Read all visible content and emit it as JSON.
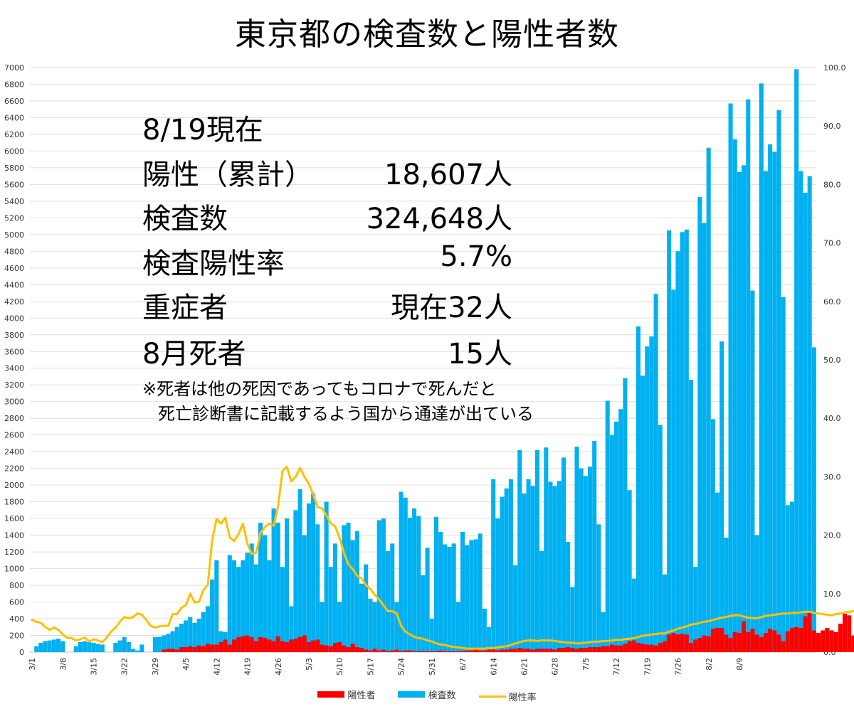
{
  "chart_data": {
    "type": "bar+line",
    "title": "東京都の検査数と陽性者数",
    "x_tick_labels": [
      "3/1",
      "3/8",
      "3/15",
      "3/22",
      "3/29",
      "4/5",
      "4/12",
      "4/19",
      "4/26",
      "5/3",
      "5/10",
      "5/17",
      "5/24",
      "5/31",
      "6/7",
      "6/14",
      "6/21",
      "6/28",
      "7/5",
      "7/12",
      "7/19",
      "7/26",
      "8/2",
      "8/9"
    ],
    "y_left_ticks": [
      "0",
      "200",
      "400",
      "600",
      "800",
      "1000",
      "1200",
      "1400",
      "1600",
      "1800",
      "2000",
      "2200",
      "2400",
      "2600",
      "2800",
      "3000",
      "3200",
      "3400",
      "3600",
      "3800",
      "4000",
      "4200",
      "4400",
      "4600",
      "4800",
      "5000",
      "5200",
      "5400",
      "5600",
      "5800",
      "6000",
      "6200",
      "6400",
      "6600",
      "6800",
      "7000"
    ],
    "y_right_ticks": [
      "0.0",
      "10.0",
      "20.0",
      "30.0",
      "40.0",
      "50.0",
      "60.0",
      "70.0",
      "80.0",
      "90.0",
      "100.0"
    ],
    "ylim_left": [
      0,
      7000
    ],
    "ylim_right": [
      0,
      100
    ],
    "grid": true,
    "legend_position": "bottom",
    "series": [
      {
        "name": "陽性者",
        "axis": "left",
        "type": "bar",
        "color": "#ff0000",
        "values": [
          0,
          0,
          0,
          0,
          0,
          0,
          0,
          0,
          0,
          0,
          0,
          0,
          0,
          0,
          0,
          0,
          0,
          0,
          0,
          0,
          0,
          0,
          0,
          0,
          0,
          0,
          0,
          0,
          0,
          0,
          30,
          40,
          40,
          30,
          60,
          60,
          70,
          60,
          80,
          70,
          100,
          90,
          90,
          120,
          150,
          90,
          150,
          180,
          190,
          200,
          180,
          130,
          180,
          170,
          150,
          130,
          190,
          130,
          120,
          150,
          160,
          180,
          200,
          120,
          140,
          150,
          90,
          80,
          70,
          110,
          120,
          80,
          60,
          100,
          60,
          50,
          30,
          20,
          40,
          20,
          30,
          10,
          20,
          30,
          10,
          20,
          20,
          10,
          10,
          10,
          10,
          10,
          10,
          20,
          10,
          10,
          10,
          10,
          10,
          20,
          20,
          30,
          20,
          20,
          30,
          30,
          20,
          30,
          30,
          40,
          40,
          50,
          40,
          40,
          30,
          40,
          40,
          40,
          40,
          30,
          50,
          50,
          60,
          50,
          40,
          50,
          50,
          60,
          60,
          60,
          70,
          70,
          90,
          80,
          80,
          100,
          130,
          140,
          110,
          100,
          90,
          90,
          80,
          110,
          130,
          210,
          230,
          210,
          220,
          210,
          110,
          150,
          170,
          200,
          190,
          280,
          290,
          290,
          210,
          170,
          240,
          230,
          370,
          240,
          280,
          210,
          180,
          230,
          280,
          260,
          210,
          130,
          250,
          290,
          300,
          290,
          430,
          470,
          260,
          230,
          260,
          290,
          260,
          240,
          340,
          460,
          440,
          200,
          180,
          180,
          200,
          230,
          390
        ],
        "display_values": []
      },
      {
        "name": "検査数",
        "axis": "left",
        "type": "bar",
        "color": "#00b0f0",
        "values": [
          0,
          70,
          110,
          130,
          140,
          150,
          160,
          130,
          0,
          0,
          70,
          120,
          130,
          120,
          110,
          100,
          90,
          0,
          0,
          110,
          140,
          180,
          120,
          40,
          20,
          90,
          0,
          0,
          180,
          180,
          200,
          220,
          250,
          300,
          340,
          380,
          420,
          350,
          400,
          480,
          550,
          870,
          1100,
          250,
          240,
          1160,
          1100,
          1020,
          1100,
          1190,
          1300,
          1050,
          1550,
          1400,
          1100,
          1720,
          1550,
          1020,
          1600,
          550,
          1700,
          1950,
          1400,
          1780,
          1900,
          1530,
          600,
          1800,
          1020,
          1300,
          600,
          1520,
          1550,
          1340,
          1450,
          820,
          1050,
          640,
          600,
          1580,
          1600,
          1210,
          1300,
          600,
          1920,
          1850,
          1610,
          1720,
          1630,
          920,
          1250,
          400,
          1620,
          1440,
          1290,
          1260,
          1300,
          600,
          1440,
          1280,
          1340,
          1350,
          1420,
          520,
          300,
          2070,
          1600,
          1860,
          1960,
          2070,
          1040,
          2420,
          1900,
          2070,
          1990,
          2420,
          1210,
          2450,
          2040,
          1990,
          2050,
          2330,
          1320,
          780,
          2460,
          2200,
          2110,
          2220,
          2530,
          1530,
          480,
          3010,
          2600,
          2760,
          2910,
          3280,
          1940,
          880,
          3900,
          3310,
          3660,
          3780,
          4290,
          2720,
          930,
          5050,
          4340,
          4800,
          5030,
          5060,
          3260,
          1020,
          5450,
          5140,
          6040,
          2790,
          1910,
          3720,
          1370,
          6570,
          6140,
          5750,
          5830,
          6620,
          4330,
          1400,
          6810,
          5760,
          6080,
          5990,
          6490,
          4250,
          1760,
          1800,
          6980,
          5760,
          5500,
          5700,
          3650
        ],
        "display_values": []
      },
      {
        "name": "陽性率",
        "axis": "right",
        "type": "line",
        "color": "#ffc000",
        "values": [
          5.5,
          5.2,
          5.0,
          4.3,
          3.8,
          4.2,
          3.8,
          3.0,
          2.4,
          2.4,
          2.0,
          2.2,
          2.5,
          1.8,
          2.2,
          2.0,
          1.7,
          2.5,
          3.5,
          4.2,
          5.2,
          6.0,
          5.8,
          6.0,
          6.6,
          6.4,
          5.5,
          4.5,
          4.2,
          4.4,
          4.5,
          4.5,
          6.5,
          6.5,
          7.6,
          8.0,
          10.0,
          8.5,
          8.6,
          10.6,
          11.5,
          19.2,
          22.8,
          22.0,
          23.0,
          19.6,
          19.0,
          20.2,
          22.0,
          18.5,
          16.8,
          17.0,
          20.4,
          21.4,
          22.0,
          21.6,
          25.0,
          31.0,
          31.7,
          29.2,
          30.0,
          31.5,
          30.0,
          28.8,
          27.0,
          24.8,
          24.6,
          23.4,
          22.0,
          21.5,
          19.5,
          17.0,
          15.0,
          14.2,
          13.0,
          12.6,
          11.5,
          10.8,
          9.8,
          9.0,
          8.0,
          7.0,
          7.0,
          6.6,
          4.5,
          3.5,
          3.0,
          2.6,
          2.4,
          2.3,
          2.0,
          1.8,
          1.5,
          1.3,
          1.2,
          1.0,
          0.9,
          0.8,
          0.7,
          0.6,
          0.6,
          0.6,
          0.6,
          0.6,
          0.7,
          0.7,
          0.8,
          0.9,
          1.0,
          1.2,
          1.5,
          1.7,
          1.9,
          2.0,
          2.0,
          1.9,
          2.0,
          2.0,
          2.0,
          1.9,
          1.8,
          1.7,
          1.6,
          1.6,
          1.5,
          1.5,
          1.6,
          1.7,
          1.8,
          1.8,
          1.9,
          1.9,
          2.0,
          2.1,
          2.1,
          2.2,
          2.3,
          2.4,
          2.6,
          2.8,
          2.9,
          3.0,
          3.1,
          3.2,
          3.2,
          3.5,
          3.7,
          4.0,
          4.2,
          4.4,
          4.7,
          4.8,
          5.0,
          5.2,
          5.3,
          5.5,
          5.7,
          5.9,
          6.0,
          6.2,
          6.3,
          6.3,
          6.1,
          5.9,
          5.8,
          5.8,
          6.0,
          6.2,
          6.3,
          6.4,
          6.5,
          6.6,
          6.6,
          6.7,
          6.7,
          6.8,
          6.9,
          6.9,
          6.7,
          6.6,
          6.5,
          6.4,
          6.3,
          6.5,
          6.6,
          6.8,
          6.9,
          7.0,
          7.0,
          7.1,
          7.1,
          7.2
        ],
        "display_values": []
      }
    ]
  },
  "overlay": {
    "lines": [
      {
        "label": "8/19現在",
        "value": ""
      },
      {
        "label": "陽性（累計）",
        "value": "18,607人"
      },
      {
        "label": "検査数",
        "value": "324,648人"
      },
      {
        "label": "検査陽性率",
        "value": "5.7%"
      },
      {
        "label": "重症者",
        "value": "現在32人"
      },
      {
        "label": "8月死者",
        "value": "15人"
      }
    ],
    "note_line1": "※死者は他の死因であってもコロナで死んだと",
    "note_line2": "死亡診断書に記載するよう国から通達が出ている"
  }
}
